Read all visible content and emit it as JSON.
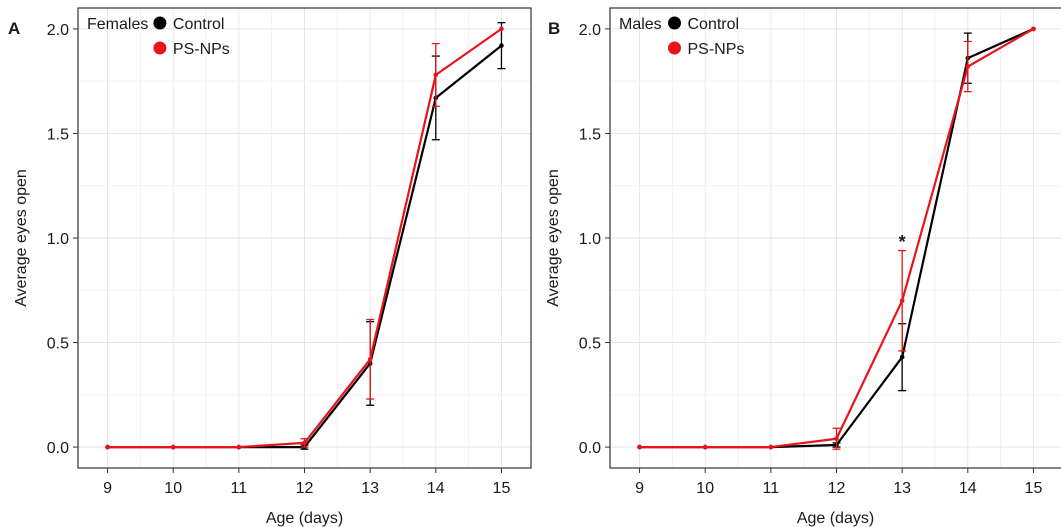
{
  "chart_data": [
    {
      "panel_label": "A",
      "type": "line",
      "legend_title": "Females",
      "legend_position": "top-left",
      "xlabel": "Age (days)",
      "ylabel": "Average eyes open",
      "x": [
        9,
        10,
        11,
        12,
        13,
        14,
        15
      ],
      "x_ticks": [
        "9",
        "10",
        "11",
        "12",
        "13",
        "14",
        "15"
      ],
      "y_ticks": [
        "0.0",
        "0.5",
        "1.0",
        "1.5",
        "2.0"
      ],
      "xlim": [
        8.55,
        15.45
      ],
      "ylim": [
        -0.1,
        2.1
      ],
      "grid": true,
      "series": [
        {
          "name": "Control",
          "color": "#000000",
          "values": [
            0,
            0,
            0,
            0.0,
            0.4,
            1.67,
            1.92
          ],
          "error": [
            0,
            0,
            0,
            0.01,
            0.2,
            0.2,
            0.11
          ]
        },
        {
          "name": "PS-NPs",
          "color": "#e8141a",
          "values": [
            0,
            0,
            0,
            0.02,
            0.42,
            1.78,
            2.0
          ],
          "error": [
            0,
            0,
            0,
            0.02,
            0.19,
            0.15,
            0.0
          ]
        }
      ],
      "annotations": []
    },
    {
      "panel_label": "B",
      "type": "line",
      "legend_title": "Males",
      "legend_position": "top-left",
      "xlabel": "Age (days)",
      "ylabel": "Average eyes open",
      "x": [
        9,
        10,
        11,
        12,
        13,
        14,
        15
      ],
      "x_ticks": [
        "9",
        "10",
        "11",
        "12",
        "13",
        "14",
        "15"
      ],
      "y_ticks": [
        "0.0",
        "0.5",
        "1.0",
        "1.5",
        "2.0"
      ],
      "xlim": [
        8.55,
        15.45
      ],
      "ylim": [
        -0.1,
        2.1
      ],
      "grid": true,
      "series": [
        {
          "name": "Control",
          "color": "#000000",
          "values": [
            0,
            0,
            0,
            0.01,
            0.43,
            1.86,
            2.0
          ],
          "error": [
            0,
            0,
            0,
            0.01,
            0.16,
            0.12,
            0.0
          ]
        },
        {
          "name": "PS-NPs",
          "color": "#e8141a",
          "values": [
            0,
            0,
            0,
            0.04,
            0.7,
            1.82,
            2.0
          ],
          "error": [
            0,
            0,
            0,
            0.05,
            0.24,
            0.12,
            0.0
          ]
        }
      ],
      "annotations": [
        {
          "text": "*",
          "x": 13,
          "y": 0.98
        }
      ]
    }
  ]
}
